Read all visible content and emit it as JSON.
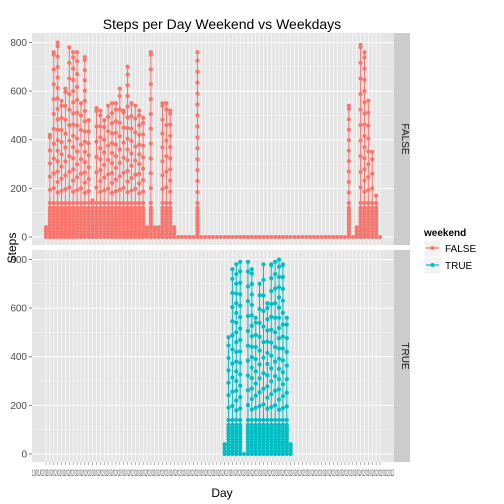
{
  "chart_data": {
    "type": "line",
    "title": "Steps per Day  Weekend vs Weekdays",
    "xlabel": "Day",
    "ylabel": "Steps",
    "grid": true,
    "legend_title": "weekend",
    "legend_position": "right",
    "ylim": [
      0,
      806
    ],
    "yticks": [
      0,
      200,
      400,
      600,
      800
    ],
    "facets": [
      {
        "label": "FALSE",
        "color": "#F8766D"
      },
      {
        "label": "TRUE",
        "color": "#00BFC4"
      }
    ],
    "series": [
      {
        "name": "FALSE",
        "color": "#F8766D",
        "daily_max": [
          {
            "day": 1,
            "max": 40
          },
          {
            "day": 2,
            "max": 420
          },
          {
            "day": 3,
            "max": 760
          },
          {
            "day": 4,
            "max": 800
          },
          {
            "day": 5,
            "max": 560
          },
          {
            "day": 6,
            "max": 610
          },
          {
            "day": 7,
            "max": 780
          },
          {
            "day": 8,
            "max": 760
          },
          {
            "day": 9,
            "max": 760
          },
          {
            "day": 10,
            "max": 550
          },
          {
            "day": 11,
            "max": 740
          },
          {
            "day": 12,
            "max": 480
          },
          {
            "day": 13,
            "max": 150
          },
          {
            "day": 14,
            "max": 530
          },
          {
            "day": 15,
            "max": 520
          },
          {
            "day": 16,
            "max": 480
          },
          {
            "day": 17,
            "max": 540
          },
          {
            "day": 18,
            "max": 550
          },
          {
            "day": 19,
            "max": 550
          },
          {
            "day": 20,
            "max": 610
          },
          {
            "day": 21,
            "max": 520
          },
          {
            "day": 22,
            "max": 700
          },
          {
            "day": 23,
            "max": 550
          },
          {
            "day": 24,
            "max": 540
          },
          {
            "day": 25,
            "max": 520
          },
          {
            "day": 26,
            "max": 490
          },
          {
            "day": 27,
            "max": 40
          },
          {
            "day": 28,
            "max": 760
          },
          {
            "day": 29,
            "max": 40
          },
          {
            "day": 30,
            "max": 40
          },
          {
            "day": 31,
            "max": 550
          },
          {
            "day": 32,
            "max": 550
          },
          {
            "day": 33,
            "max": 520
          },
          {
            "day": 34,
            "max": 40
          },
          {
            "day": 35,
            "max": 0
          },
          {
            "day": 36,
            "max": 0
          },
          {
            "day": 37,
            "max": 0
          },
          {
            "day": 38,
            "max": 0
          },
          {
            "day": 39,
            "max": 0
          },
          {
            "day": 40,
            "max": 760
          },
          {
            "day": 41,
            "max": 0
          },
          {
            "day": 42,
            "max": 0
          },
          {
            "day": 43,
            "max": 0
          },
          {
            "day": 44,
            "max": 0
          },
          {
            "day": 45,
            "max": 0
          },
          {
            "day": 46,
            "max": 0
          },
          {
            "day": 47,
            "max": 0
          },
          {
            "day": 48,
            "max": 0
          },
          {
            "day": 49,
            "max": 0
          },
          {
            "day": 50,
            "max": 0
          },
          {
            "day": 51,
            "max": 0
          },
          {
            "day": 52,
            "max": 0
          },
          {
            "day": 53,
            "max": 0
          },
          {
            "day": 54,
            "max": 0
          },
          {
            "day": 55,
            "max": 0
          },
          {
            "day": 56,
            "max": 0
          },
          {
            "day": 57,
            "max": 0
          },
          {
            "day": 58,
            "max": 0
          },
          {
            "day": 59,
            "max": 0
          },
          {
            "day": 60,
            "max": 0
          },
          {
            "day": 61,
            "max": 0
          },
          {
            "day": 62,
            "max": 0
          },
          {
            "day": 63,
            "max": 0
          },
          {
            "day": 64,
            "max": 0
          },
          {
            "day": 65,
            "max": 0
          },
          {
            "day": 66,
            "max": 0
          },
          {
            "day": 67,
            "max": 0
          },
          {
            "day": 68,
            "max": 0
          },
          {
            "day": 69,
            "max": 0
          },
          {
            "day": 70,
            "max": 0
          },
          {
            "day": 71,
            "max": 0
          },
          {
            "day": 72,
            "max": 0
          },
          {
            "day": 73,
            "max": 0
          },
          {
            "day": 74,
            "max": 0
          },
          {
            "day": 75,
            "max": 0
          },
          {
            "day": 76,
            "max": 0
          },
          {
            "day": 77,
            "max": 0
          },
          {
            "day": 78,
            "max": 0
          },
          {
            "day": 79,
            "max": 540
          },
          {
            "day": 80,
            "max": 0
          },
          {
            "day": 81,
            "max": 40
          },
          {
            "day": 82,
            "max": 790
          },
          {
            "day": 83,
            "max": 760
          },
          {
            "day": 84,
            "max": 560
          },
          {
            "day": 85,
            "max": 350
          },
          {
            "day": 86,
            "max": 170
          },
          {
            "day": 87,
            "max": 0
          }
        ]
      },
      {
        "name": "TRUE",
        "color": "#00BFC4",
        "daily_max": [
          {
            "day": 47,
            "max": 40
          },
          {
            "day": 48,
            "max": 480
          },
          {
            "day": 49,
            "max": 760
          },
          {
            "day": 50,
            "max": 780
          },
          {
            "day": 51,
            "max": 790
          },
          {
            "day": 52,
            "max": 0
          },
          {
            "day": 53,
            "max": 790
          },
          {
            "day": 54,
            "max": 760
          },
          {
            "day": 55,
            "max": 560
          },
          {
            "day": 56,
            "max": 700
          },
          {
            "day": 57,
            "max": 780
          },
          {
            "day": 58,
            "max": 620
          },
          {
            "day": 59,
            "max": 780
          },
          {
            "day": 60,
            "max": 790
          },
          {
            "day": 61,
            "max": 800
          },
          {
            "day": 62,
            "max": 780
          },
          {
            "day": 63,
            "max": 560
          },
          {
            "day": 64,
            "max": 40
          }
        ]
      }
    ],
    "x_tick_labels_text": "10/01/02/02/02/02/02/02/02/02/02/02/02/02/02/02/02/02/02/02/02/02/02/02/02/02/02/02/02/02/02/02/02/02/02/02/02/02/02/02/02/02/02/02/02/02/02/02/02/02/02/02/02/02/02/02/02/02/02/02/02/02/02/02/02/02/02/02/02/02/02/02/02/02/02/02/02/02/02/02/02/02/02/2012"
  }
}
